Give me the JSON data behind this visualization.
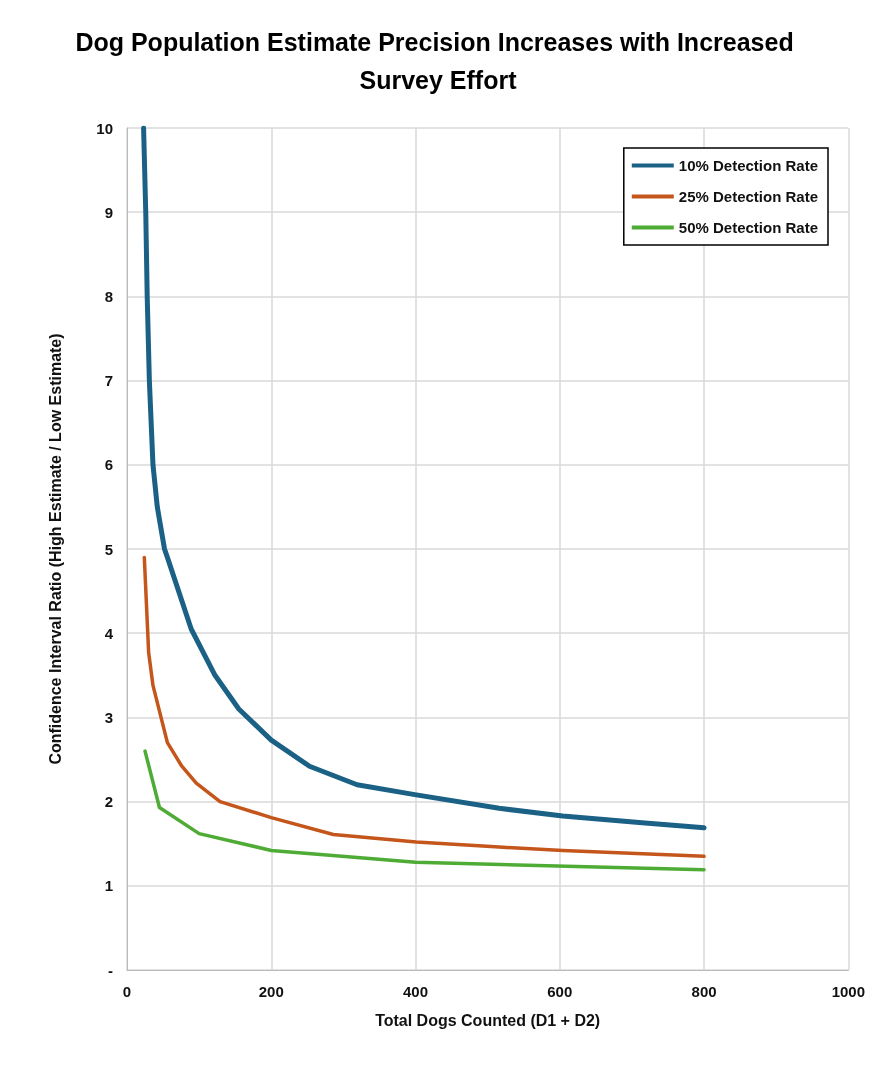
{
  "chart_data": {
    "type": "line",
    "title": "Dog Population Estimate Precision Increases with Increased Survey Effort",
    "xlabel": "Total Dogs Counted (D1 + D2)",
    "ylabel": "Confidence Interval Ratio (High Estimate / Low Estimate)",
    "xlim": [
      0,
      1000
    ],
    "xticks": [
      0,
      200,
      400,
      600,
      800,
      1000
    ],
    "ylim": [
      0,
      10
    ],
    "yticks": [
      {
        "value": 0,
        "label": "-"
      },
      1,
      2,
      3,
      4,
      5,
      6,
      7,
      8,
      9,
      10
    ],
    "grid": true,
    "legend": "top right",
    "marker": "none",
    "line_style": "solid",
    "series": [
      {
        "name": "10% Detection Rate",
        "color": "#1b6185",
        "x": [
          23,
          26,
          28,
          31,
          36,
          42,
          52,
          56,
          89,
          122,
          155,
          200,
          253,
          319,
          401,
          516,
          604,
          714,
          800
        ],
        "values": [
          10,
          9,
          8,
          7,
          6,
          5.5,
          5,
          4.9,
          4.05,
          3.5,
          3.1,
          2.73,
          2.42,
          2.2,
          2.08,
          1.92,
          1.83,
          1.75,
          1.69
        ]
      },
      {
        "name": "25% Detection Rate",
        "color": "#c5561b",
        "x": [
          24,
          30,
          36,
          56,
          76,
          96,
          129,
          200,
          286,
          401,
          516,
          604,
          800
        ],
        "values": [
          4.9,
          3.77,
          3.38,
          2.7,
          2.42,
          2.22,
          2,
          1.81,
          1.61,
          1.52,
          1.46,
          1.42,
          1.35
        ]
      },
      {
        "name": "50% Detection Rate",
        "color": "#4eab35",
        "x": [
          25,
          45,
          100,
          200,
          400,
          800
        ],
        "values": [
          2.6,
          1.93,
          1.62,
          1.42,
          1.28,
          1.19
        ]
      }
    ]
  }
}
